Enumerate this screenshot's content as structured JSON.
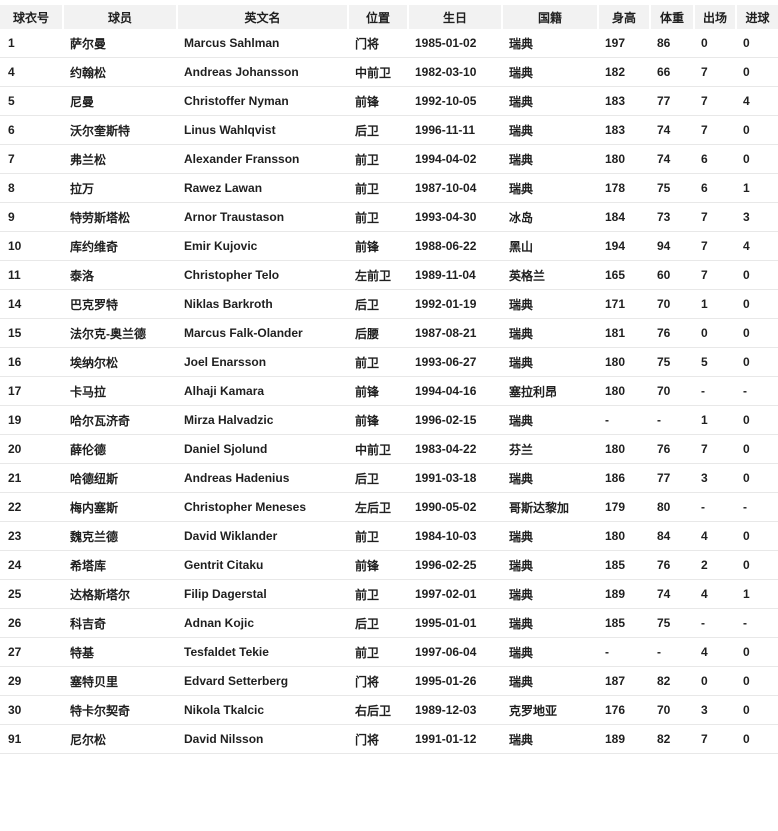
{
  "colors": {
    "header_background": "#f2f2f2",
    "row_border": "#e8e8e8",
    "text": "#1f1f1f",
    "page_background": "#ffffff"
  },
  "table": {
    "columns": [
      {
        "key": "jersey-number",
        "label": "球衣号"
      },
      {
        "key": "player-name-cn",
        "label": "球员"
      },
      {
        "key": "player-name-en",
        "label": "英文名"
      },
      {
        "key": "position",
        "label": "位置"
      },
      {
        "key": "birthday",
        "label": "生日"
      },
      {
        "key": "nationality",
        "label": "国籍"
      },
      {
        "key": "height",
        "label": "身高"
      },
      {
        "key": "weight",
        "label": "体重"
      },
      {
        "key": "appearances",
        "label": "出场"
      },
      {
        "key": "goals",
        "label": "进球"
      }
    ],
    "rows": [
      [
        "1",
        "萨尔曼",
        "Marcus Sahlman",
        "门将",
        "1985-01-02",
        "瑞典",
        "197",
        "86",
        "0",
        "0"
      ],
      [
        "4",
        "约翰松",
        "Andreas Johansson",
        "中前卫",
        "1982-03-10",
        "瑞典",
        "182",
        "66",
        "7",
        "0"
      ],
      [
        "5",
        "尼曼",
        "Christoffer Nyman",
        "前锋",
        "1992-10-05",
        "瑞典",
        "183",
        "77",
        "7",
        "4"
      ],
      [
        "6",
        "沃尔奎斯特",
        "Linus Wahlqvist",
        "后卫",
        "1996-11-11",
        "瑞典",
        "183",
        "74",
        "7",
        "0"
      ],
      [
        "7",
        "弗兰松",
        "Alexander Fransson",
        "前卫",
        "1994-04-02",
        "瑞典",
        "180",
        "74",
        "6",
        "0"
      ],
      [
        "8",
        "拉万",
        "Rawez Lawan",
        "前卫",
        "1987-10-04",
        "瑞典",
        "178",
        "75",
        "6",
        "1"
      ],
      [
        "9",
        "特劳斯塔松",
        "Arnor Traustason",
        "前卫",
        "1993-04-30",
        "冰岛",
        "184",
        "73",
        "7",
        "3"
      ],
      [
        "10",
        "库约维奇",
        "Emir Kujovic",
        "前锋",
        "1988-06-22",
        "黑山",
        "194",
        "94",
        "7",
        "4"
      ],
      [
        "11",
        "泰洛",
        "Christopher Telo",
        "左前卫",
        "1989-11-04",
        "英格兰",
        "165",
        "60",
        "7",
        "0"
      ],
      [
        "14",
        "巴克罗特",
        "Niklas Barkroth",
        "后卫",
        "1992-01-19",
        "瑞典",
        "171",
        "70",
        "1",
        "0"
      ],
      [
        "15",
        "法尔克-奥兰德",
        "Marcus Falk-Olander",
        "后腰",
        "1987-08-21",
        "瑞典",
        "181",
        "76",
        "0",
        "0"
      ],
      [
        "16",
        "埃纳尔松",
        "Joel Enarsson",
        "前卫",
        "1993-06-27",
        "瑞典",
        "180",
        "75",
        "5",
        "0"
      ],
      [
        "17",
        "卡马拉",
        "Alhaji Kamara",
        "前锋",
        "1994-04-16",
        "塞拉利昂",
        "180",
        "70",
        "-",
        "-"
      ],
      [
        "19",
        "哈尔瓦济奇",
        "Mirza Halvadzic",
        "前锋",
        "1996-02-15",
        "瑞典",
        "-",
        "-",
        "1",
        "0"
      ],
      [
        "20",
        "薛伦德",
        "Daniel Sjolund",
        "中前卫",
        "1983-04-22",
        "芬兰",
        "180",
        "76",
        "7",
        "0"
      ],
      [
        "21",
        "哈德纽斯",
        "Andreas Hadenius",
        "后卫",
        "1991-03-18",
        "瑞典",
        "186",
        "77",
        "3",
        "0"
      ],
      [
        "22",
        "梅内塞斯",
        "Christopher Meneses",
        "左后卫",
        "1990-05-02",
        "哥斯达黎加",
        "179",
        "80",
        "-",
        "-"
      ],
      [
        "23",
        "魏克兰德",
        "David Wiklander",
        "前卫",
        "1984-10-03",
        "瑞典",
        "180",
        "84",
        "4",
        "0"
      ],
      [
        "24",
        "希塔库",
        "Gentrit Citaku",
        "前锋",
        "1996-02-25",
        "瑞典",
        "185",
        "76",
        "2",
        "0"
      ],
      [
        "25",
        "达格斯塔尔",
        "Filip Dagerstal",
        "前卫",
        "1997-02-01",
        "瑞典",
        "189",
        "74",
        "4",
        "1"
      ],
      [
        "26",
        "科吉奇",
        "Adnan Kojic",
        "后卫",
        "1995-01-01",
        "瑞典",
        "185",
        "75",
        "-",
        "-"
      ],
      [
        "27",
        "特基",
        "Tesfaldet Tekie",
        "前卫",
        "1997-06-04",
        "瑞典",
        "-",
        "-",
        "4",
        "0"
      ],
      [
        "29",
        "塞特贝里",
        "Edvard Setterberg",
        "门将",
        "1995-01-26",
        "瑞典",
        "187",
        "82",
        "0",
        "0"
      ],
      [
        "30",
        "特卡尔契奇",
        "Nikola Tkalcic",
        "右后卫",
        "1989-12-03",
        "克罗地亚",
        "176",
        "70",
        "3",
        "0"
      ],
      [
        "91",
        "尼尔松",
        "David Nilsson",
        "门将",
        "1991-01-12",
        "瑞典",
        "189",
        "82",
        "7",
        "0"
      ]
    ]
  }
}
